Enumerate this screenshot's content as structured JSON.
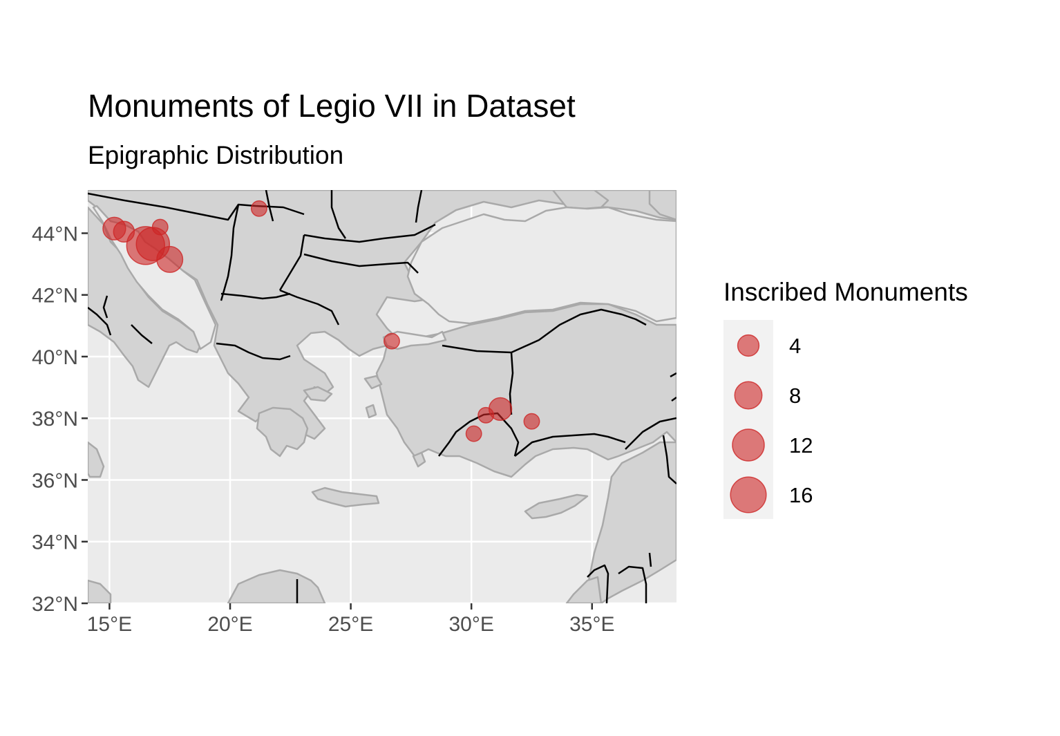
{
  "title": "Monuments of Legio VII in Dataset",
  "subtitle": "Epigraphic Distribution",
  "colors": {
    "panel_background": "#ebebeb",
    "land": "#d3d3d3",
    "coast": "#a9a9a9",
    "borders": "#000000",
    "grid": "#ffffff",
    "points": "#cd2626",
    "legend_key_background": "#f2f2f2"
  },
  "chart_data": {
    "type": "scatter",
    "map_type": "bubble-map",
    "title": "Monuments of Legio VII in Dataset",
    "subtitle": "Epigraphic Distribution",
    "x_ticks": [
      {
        "value": 15,
        "label": "15°E"
      },
      {
        "value": 20,
        "label": "20°E"
      },
      {
        "value": 25,
        "label": "25°E"
      },
      {
        "value": 30,
        "label": "30°E"
      },
      {
        "value": 35,
        "label": "35°E"
      }
    ],
    "y_ticks": [
      {
        "value": 32,
        "label": "32°N"
      },
      {
        "value": 34,
        "label": "34°N"
      },
      {
        "value": 36,
        "label": "36°N"
      },
      {
        "value": 38,
        "label": "38°N"
      },
      {
        "value": 40,
        "label": "40°N"
      },
      {
        "value": 42,
        "label": "42°N"
      },
      {
        "value": 44,
        "label": "44°N"
      }
    ],
    "xlim": [
      14.1,
      38.5
    ],
    "ylim": [
      32.0,
      45.4
    ],
    "grid": true,
    "legend": {
      "title": "Inscribed Monuments",
      "position": "right",
      "entries": [
        {
          "value": 4,
          "label": "4"
        },
        {
          "value": 8,
          "label": "8"
        },
        {
          "value": 12,
          "label": "12"
        },
        {
          "value": 16,
          "label": "16"
        }
      ]
    },
    "points": [
      {
        "lon": 15.2,
        "lat": 44.15,
        "count": 4
      },
      {
        "lon": 15.6,
        "lat": 44.05,
        "count": 3
      },
      {
        "lon": 16.5,
        "lat": 43.6,
        "count": 17
      },
      {
        "lon": 16.8,
        "lat": 43.65,
        "count": 12
      },
      {
        "lon": 17.1,
        "lat": 44.2,
        "count": 1
      },
      {
        "lon": 17.5,
        "lat": 43.15,
        "count": 6
      },
      {
        "lon": 21.2,
        "lat": 44.8,
        "count": 1
      },
      {
        "lon": 26.7,
        "lat": 40.5,
        "count": 1
      },
      {
        "lon": 31.2,
        "lat": 38.3,
        "count": 4
      },
      {
        "lon": 30.6,
        "lat": 38.1,
        "count": 1
      },
      {
        "lon": 30.1,
        "lat": 37.5,
        "count": 1
      },
      {
        "lon": 32.5,
        "lat": 37.9,
        "count": 1
      }
    ]
  }
}
